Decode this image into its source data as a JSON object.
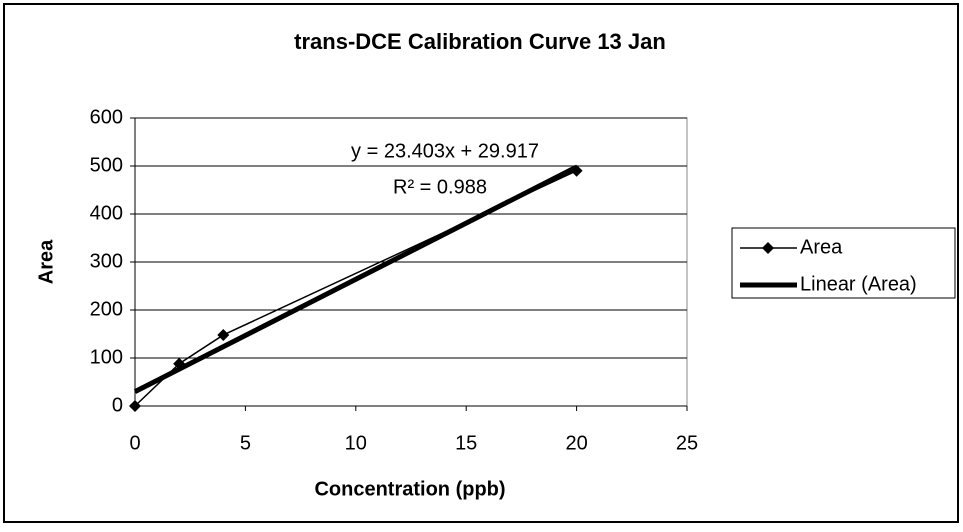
{
  "chart_data": {
    "type": "scatter",
    "title": "trans-DCE Calibration Curve 13 Jan",
    "x_label": "Concentration (ppb)",
    "y_label": "Area",
    "annotations": [
      "y = 23.403x + 29.917",
      "R² = 0.988"
    ],
    "series": [
      {
        "name": "Area",
        "color": "#000000",
        "style": "line-marker",
        "x": [
          0,
          2,
          4,
          20
        ],
        "values": [
          0,
          88,
          148,
          490
        ]
      },
      {
        "name": "Linear (Area)",
        "color": "#000000",
        "style": "trendline",
        "x": [
          0,
          20
        ],
        "values": [
          29.917,
          497.977
        ]
      }
    ],
    "xlim": [
      0,
      25
    ],
    "xticks": [
      0,
      5,
      10,
      15,
      20,
      25
    ],
    "ylim": [
      0,
      600
    ],
    "yticks": [
      0,
      100,
      200,
      300,
      400,
      500,
      600
    ],
    "grid": true,
    "legend": "right"
  }
}
